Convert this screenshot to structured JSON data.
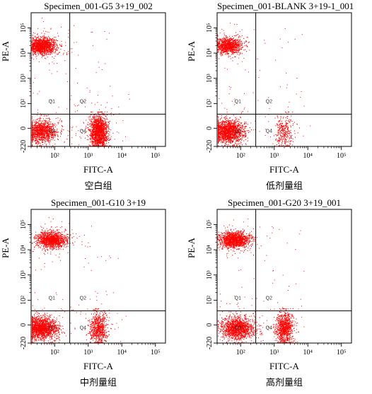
{
  "chart_data": [
    {
      "type": "scatter",
      "title": "Specimen_001-G5 3+19_002",
      "caption": "空白组",
      "xlabel": "FITC-A",
      "ylabel": "PE-A",
      "xticks": [
        "10²",
        "10³",
        "10⁴",
        "10⁵"
      ],
      "yticks": [
        "-220",
        "0",
        "10²",
        "10³",
        "10⁴",
        "10⁵"
      ],
      "quadrants": [
        "Q1",
        "Q2",
        "Q3",
        "Q4"
      ],
      "point_color": "#ff0000",
      "clusters": [
        {
          "quadrant": "Q1",
          "x": 1.6,
          "y": 4.0,
          "density": 2.8
        },
        {
          "quadrant": "Q3",
          "x": 1.6,
          "y": 0.6,
          "density": 2.2
        },
        {
          "quadrant": "Q4",
          "x": 3.3,
          "y": 0.6,
          "density": 3.0
        }
      ]
    },
    {
      "type": "scatter",
      "title": "Specimen_001-BLANK 3+19-1_001",
      "caption": "低剂量组",
      "xlabel": "FITC-A",
      "ylabel": "PE-A",
      "xticks": [
        "10²",
        "10³",
        "10⁴",
        "10⁵"
      ],
      "yticks": [
        "-220",
        "0",
        "10²",
        "10³",
        "10⁴",
        "10⁵"
      ],
      "quadrants": [
        "Q1",
        "Q2",
        "Q3",
        "Q4"
      ],
      "point_color": "#ff0000",
      "clusters": [
        {
          "quadrant": "Q1",
          "x": 1.6,
          "y": 4.0,
          "density": 2.0
        },
        {
          "quadrant": "Q3",
          "x": 1.6,
          "y": 0.6,
          "density": 3.2
        },
        {
          "quadrant": "Q4",
          "x": 3.3,
          "y": 0.6,
          "density": 0.6
        }
      ]
    },
    {
      "type": "scatter",
      "title": "Specimen_001-G10 3+19",
      "caption": "中剂量组",
      "xlabel": "FITC-A",
      "ylabel": "PE-A",
      "xticks": [
        "10²",
        "10³",
        "10⁴",
        "10⁵"
      ],
      "yticks": [
        "-220",
        "0",
        "10²",
        "10³",
        "10⁴",
        "10⁵"
      ],
      "quadrants": [
        "Q1",
        "Q2",
        "Q3",
        "Q4"
      ],
      "point_color": "#ff0000",
      "clusters": [
        {
          "quadrant": "Q1",
          "x": 1.9,
          "y": 4.1,
          "density": 2.4
        },
        {
          "quadrant": "Q3",
          "x": 1.6,
          "y": 0.6,
          "density": 3.2
        },
        {
          "quadrant": "Q4",
          "x": 3.3,
          "y": 0.6,
          "density": 1.3
        }
      ]
    },
    {
      "type": "scatter",
      "title": "Specimen_001-G20 3+19_001",
      "caption": "高剂量组",
      "xlabel": "FITC-A",
      "ylabel": "PE-A",
      "xticks": [
        "10²",
        "10³",
        "10⁴",
        "10⁵"
      ],
      "yticks": [
        "-220",
        "0",
        "10²",
        "10³",
        "10⁴",
        "10⁵"
      ],
      "quadrants": [
        "Q1",
        "Q2",
        "Q3",
        "Q4"
      ],
      "point_color": "#ff0000",
      "clusters": [
        {
          "quadrant": "Q1",
          "x": 1.8,
          "y": 4.1,
          "density": 2.6
        },
        {
          "quadrant": "Q3",
          "x": 1.9,
          "y": 0.6,
          "density": 2.6
        },
        {
          "quadrant": "Q4",
          "x": 3.3,
          "y": 0.6,
          "density": 1.7
        }
      ]
    }
  ]
}
